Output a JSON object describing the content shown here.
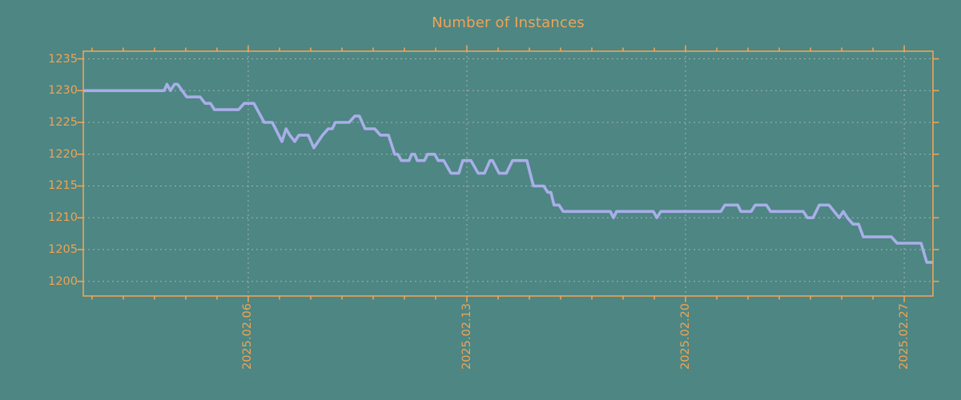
{
  "colors": {
    "background": "#4d8683",
    "axis_and_text": "#f0a355",
    "line": "#a9aee8",
    "grid": "#a6b2af"
  },
  "chart_data": {
    "type": "line",
    "title": "Number of Instances",
    "xlabel": "",
    "ylabel": "",
    "grid": true,
    "legend": "none",
    "y_ticks": [
      1200,
      1205,
      1210,
      1215,
      1220,
      1225,
      1230,
      1235
    ],
    "y_tick_labels": [
      "1200",
      "1205",
      "1210",
      "1215",
      "1220",
      "1225",
      "1230",
      "1235"
    ],
    "ylim": [
      1197.7,
      1236.2
    ],
    "x_unit": "day of February 2025",
    "xlim": [
      0.72,
      27.92
    ],
    "x_minor_tick_days": [
      1,
      2,
      3,
      4,
      5,
      6,
      7,
      8,
      9,
      10,
      11,
      12,
      13,
      14,
      15,
      16,
      17,
      18,
      19,
      20,
      21,
      22,
      23,
      24,
      25,
      26,
      27
    ],
    "x_major_ticks": [
      {
        "day": 6,
        "label": "2025.02.06"
      },
      {
        "day": 13,
        "label": "2025.02.13"
      },
      {
        "day": 20,
        "label": "2025.02.20"
      },
      {
        "day": 27,
        "label": "2025.02.27"
      }
    ],
    "series": [
      {
        "name": "Number of Instances",
        "points": [
          [
            0.72,
            1230
          ],
          [
            3.31,
            1230
          ],
          [
            3.4,
            1231
          ],
          [
            3.51,
            1230
          ],
          [
            3.64,
            1231
          ],
          [
            3.74,
            1231
          ],
          [
            4.03,
            1229
          ],
          [
            4.46,
            1229
          ],
          [
            4.62,
            1228
          ],
          [
            4.79,
            1228
          ],
          [
            4.92,
            1227
          ],
          [
            5.69,
            1227
          ],
          [
            5.87,
            1228
          ],
          [
            6.18,
            1228
          ],
          [
            6.51,
            1225
          ],
          [
            6.77,
            1225
          ],
          [
            7.08,
            1222
          ],
          [
            7.21,
            1224
          ],
          [
            7.33,
            1223
          ],
          [
            7.49,
            1222
          ],
          [
            7.62,
            1223
          ],
          [
            7.92,
            1223
          ],
          [
            8.1,
            1221
          ],
          [
            8.38,
            1223
          ],
          [
            8.56,
            1224
          ],
          [
            8.69,
            1224
          ],
          [
            8.79,
            1225
          ],
          [
            9.23,
            1225
          ],
          [
            9.41,
            1226
          ],
          [
            9.56,
            1226
          ],
          [
            9.74,
            1224
          ],
          [
            10.05,
            1224
          ],
          [
            10.23,
            1223
          ],
          [
            10.49,
            1223
          ],
          [
            10.69,
            1220
          ],
          [
            10.79,
            1220
          ],
          [
            10.9,
            1219
          ],
          [
            11.15,
            1219
          ],
          [
            11.23,
            1220
          ],
          [
            11.33,
            1220
          ],
          [
            11.41,
            1219
          ],
          [
            11.64,
            1219
          ],
          [
            11.74,
            1220
          ],
          [
            11.97,
            1220
          ],
          [
            12.08,
            1219
          ],
          [
            12.26,
            1219
          ],
          [
            12.49,
            1217
          ],
          [
            12.74,
            1217
          ],
          [
            12.87,
            1219
          ],
          [
            13.13,
            1219
          ],
          [
            13.36,
            1217
          ],
          [
            13.56,
            1217
          ],
          [
            13.74,
            1219
          ],
          [
            13.82,
            1219
          ],
          [
            14.03,
            1217
          ],
          [
            14.26,
            1217
          ],
          [
            14.46,
            1219
          ],
          [
            14.92,
            1219
          ],
          [
            15.13,
            1215
          ],
          [
            15.46,
            1215
          ],
          [
            15.59,
            1214
          ],
          [
            15.69,
            1214
          ],
          [
            15.79,
            1212
          ],
          [
            15.95,
            1212
          ],
          [
            16.08,
            1211
          ],
          [
            17.59,
            1211
          ],
          [
            17.69,
            1210
          ],
          [
            17.79,
            1211
          ],
          [
            18.97,
            1211
          ],
          [
            19.08,
            1210
          ],
          [
            19.21,
            1211
          ],
          [
            21.13,
            1211
          ],
          [
            21.26,
            1212
          ],
          [
            21.67,
            1212
          ],
          [
            21.77,
            1211
          ],
          [
            22.1,
            1211
          ],
          [
            22.23,
            1212
          ],
          [
            22.59,
            1212
          ],
          [
            22.72,
            1211
          ],
          [
            23.77,
            1211
          ],
          [
            23.9,
            1210
          ],
          [
            24.08,
            1210
          ],
          [
            24.28,
            1212
          ],
          [
            24.59,
            1212
          ],
          [
            24.92,
            1210
          ],
          [
            25.05,
            1211
          ],
          [
            25.18,
            1210
          ],
          [
            25.36,
            1209
          ],
          [
            25.54,
            1209
          ],
          [
            25.69,
            1207
          ],
          [
            26.59,
            1207
          ],
          [
            26.77,
            1206
          ],
          [
            27.54,
            1206
          ],
          [
            27.72,
            1203
          ],
          [
            27.92,
            1203
          ]
        ]
      }
    ]
  }
}
